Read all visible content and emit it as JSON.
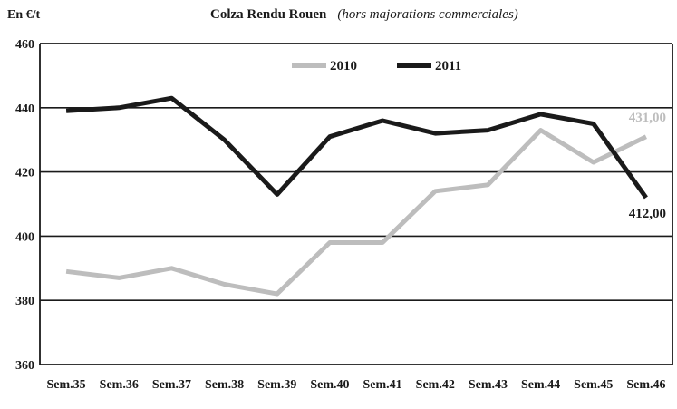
{
  "chart_data": {
    "type": "line",
    "title": "Colza Rendu Rouen",
    "subtitle": "(hors majorations commerciales)",
    "ylabel": "En €/t",
    "xlabel": "",
    "categories": [
      "Sem.35",
      "Sem.36",
      "Sem.37",
      "Sem.38",
      "Sem.39",
      "Sem.40",
      "Sem.41",
      "Sem.42",
      "Sem.43",
      "Sem.44",
      "Sem.45",
      "Sem.46"
    ],
    "ylim": [
      360,
      460
    ],
    "yticks": [
      360,
      380,
      400,
      420,
      440,
      460
    ],
    "grid": true,
    "legend_position": "top",
    "series": [
      {
        "name": "2010",
        "color": "#bdbdbd",
        "values": [
          389,
          387,
          390,
          385,
          382,
          398,
          398,
          414,
          416,
          433,
          423,
          431
        ],
        "end_label": "431,00"
      },
      {
        "name": "2011",
        "color": "#1a1a1a",
        "values": [
          439,
          440,
          443,
          430,
          413,
          431,
          436,
          432,
          433,
          438,
          435,
          412
        ],
        "end_label": "412,00"
      }
    ]
  }
}
